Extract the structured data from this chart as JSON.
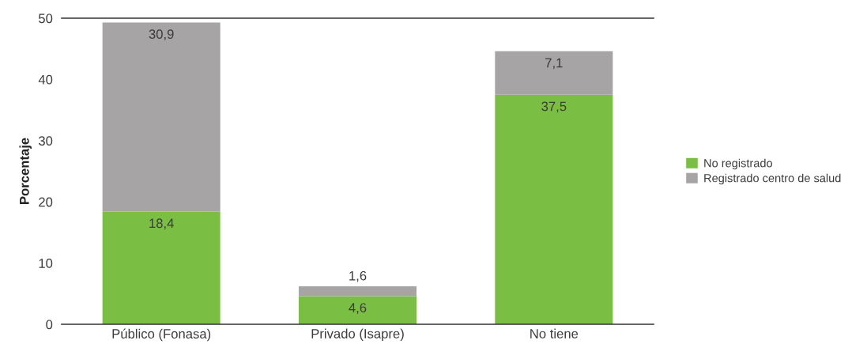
{
  "chart_data": {
    "type": "bar",
    "stacked": true,
    "ylabel": "Porcentaje",
    "categories": [
      "Público (Fonasa)",
      "Privado (Isapre)",
      "No tiene"
    ],
    "series": [
      {
        "name": "No registrado",
        "color": "#7abf44",
        "values": [
          18.4,
          4.6,
          37.5
        ],
        "value_labels": [
          "18,4",
          "4,6",
          "37,5"
        ]
      },
      {
        "name": "Registrado centro de salud",
        "color": "#a6a4a5",
        "values": [
          30.9,
          1.6,
          7.1
        ],
        "value_labels": [
          "30,9",
          "1,6",
          "7,1"
        ]
      }
    ],
    "ylim": [
      0,
      50
    ],
    "yticks": [
      0,
      10,
      20,
      30,
      40,
      50
    ],
    "grid": false,
    "legend": "right"
  }
}
